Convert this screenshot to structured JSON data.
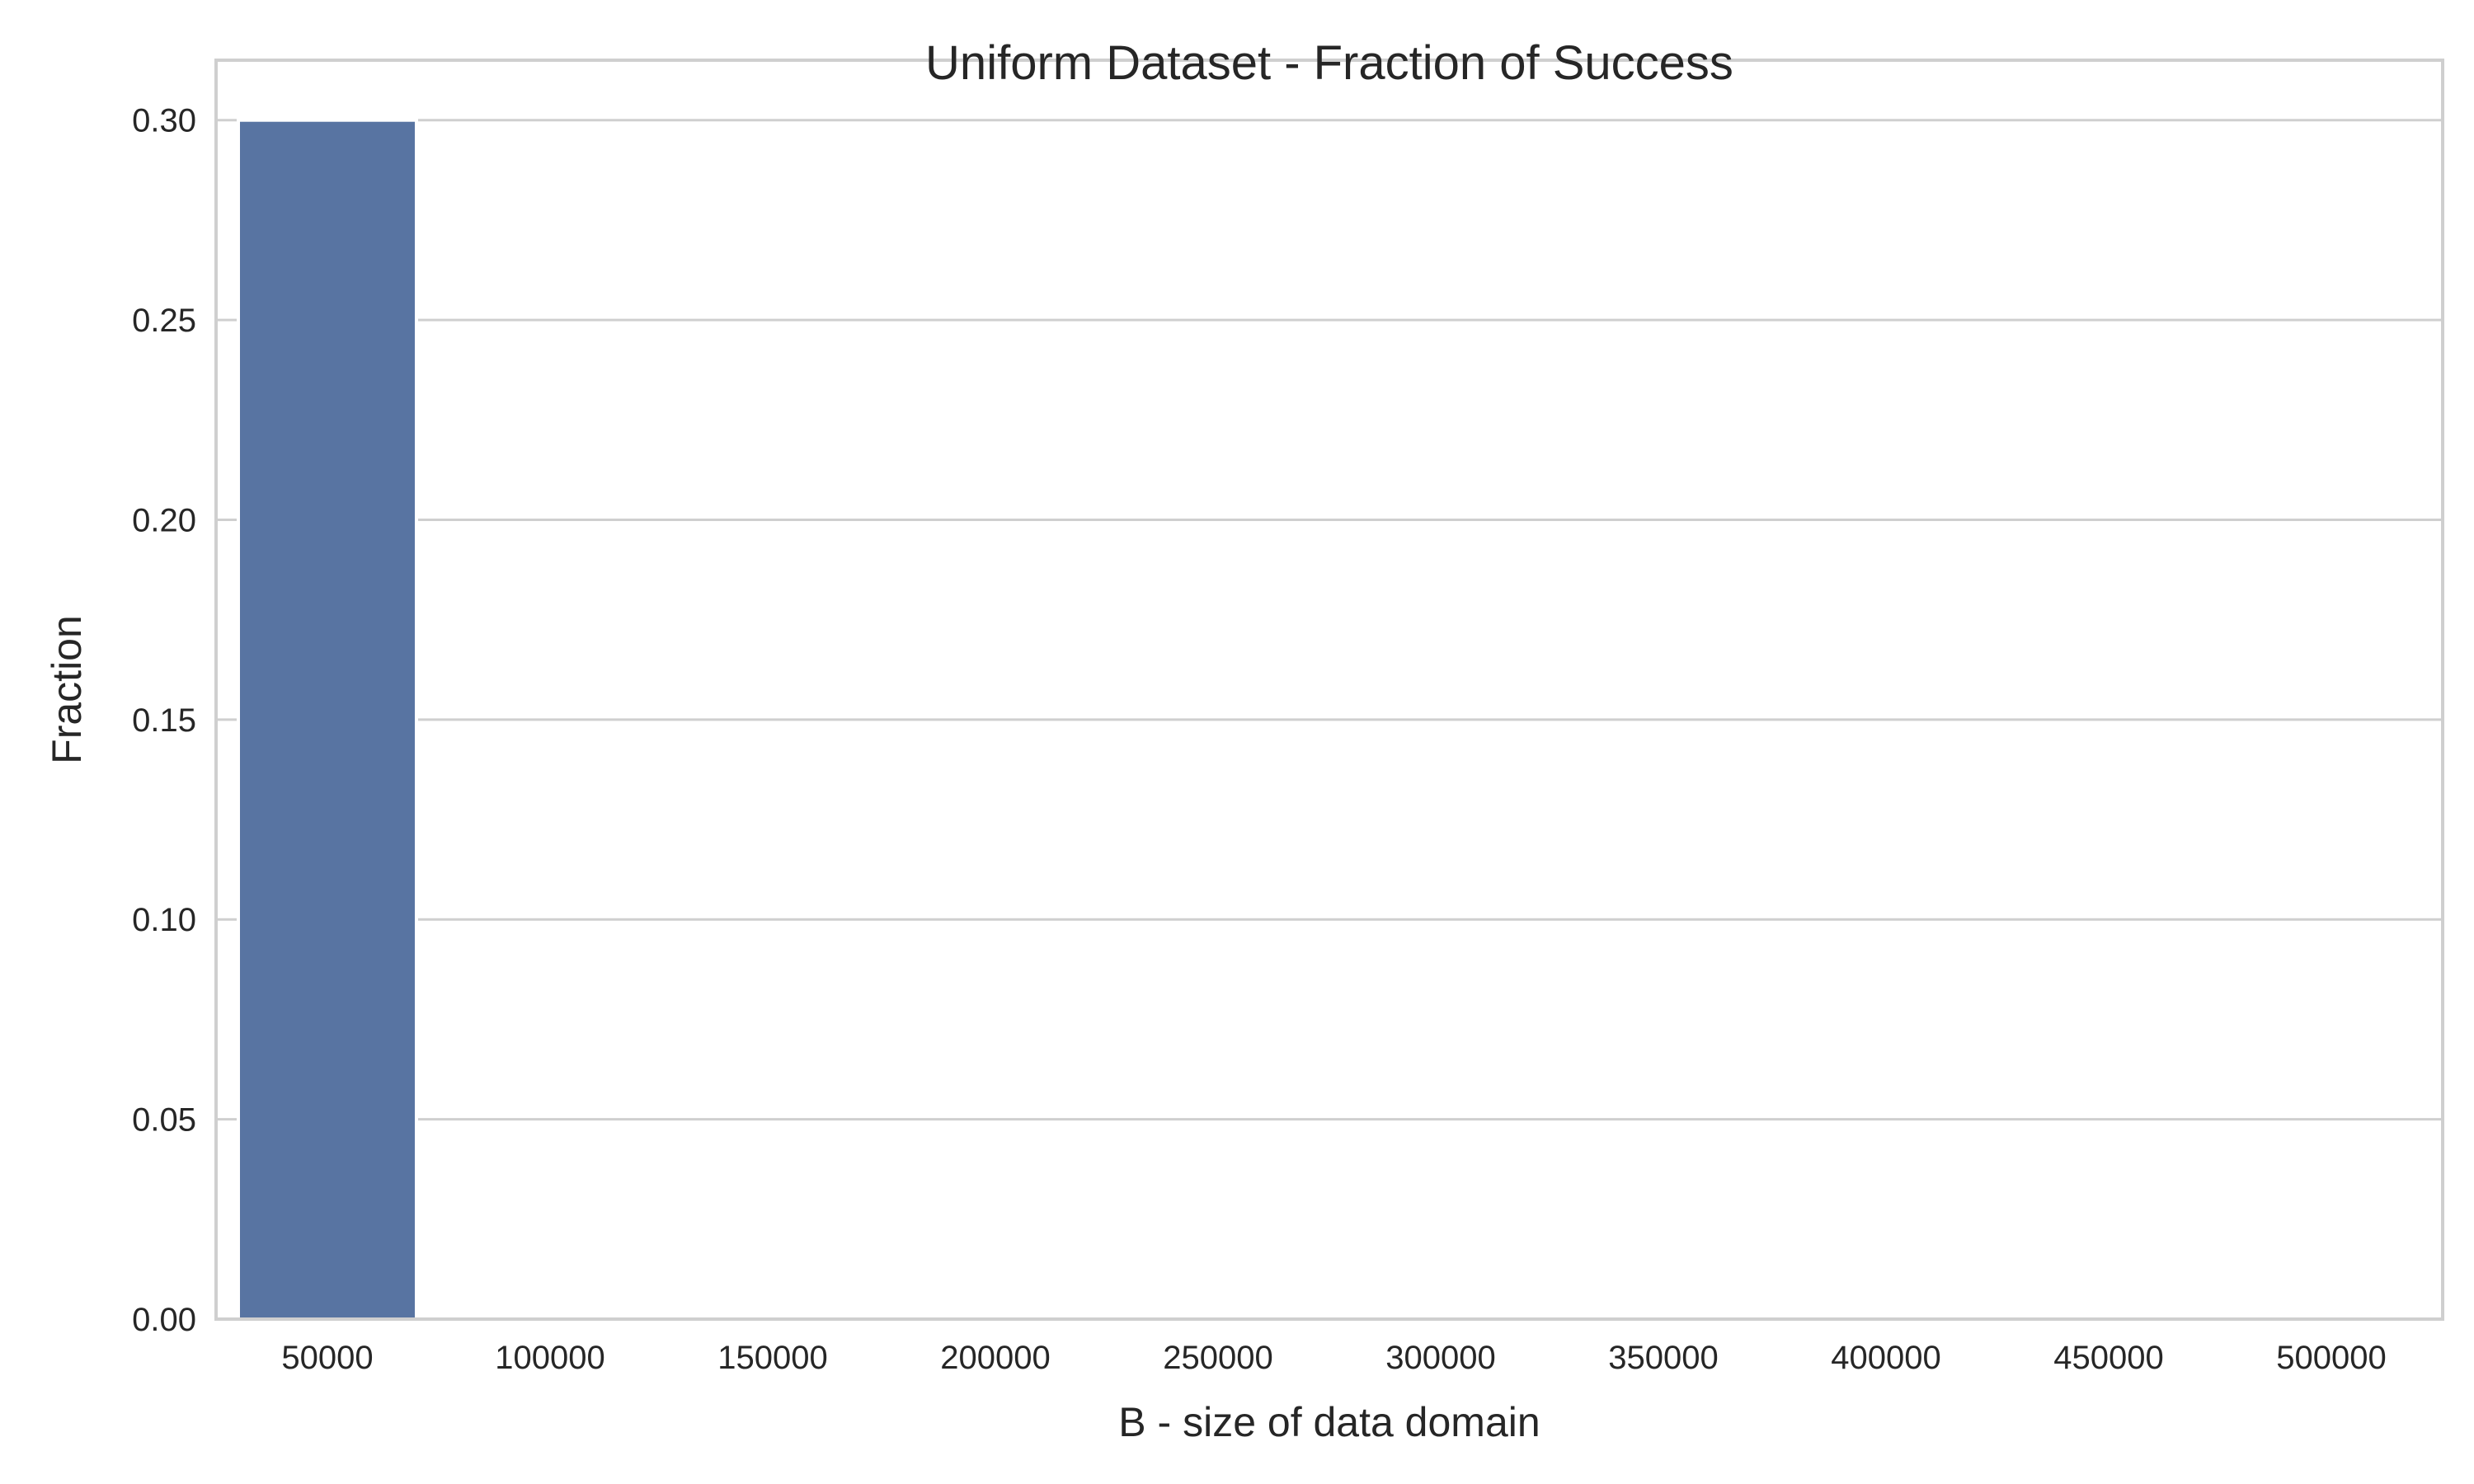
{
  "chart_data": {
    "type": "bar",
    "title": "Uniform Dataset - Fraction of Success",
    "xlabel": "B - size of data domain",
    "ylabel": "Fraction",
    "categories": [
      "50000",
      "100000",
      "150000",
      "200000",
      "250000",
      "300000",
      "350000",
      "400000",
      "450000",
      "500000"
    ],
    "values": [
      0.3,
      0,
      0,
      0,
      0,
      0,
      0,
      0,
      0,
      0
    ],
    "ylim": [
      0,
      0.315
    ],
    "yticks": [
      "0.00",
      "0.05",
      "0.10",
      "0.15",
      "0.20",
      "0.25",
      "0.30"
    ],
    "ytick_values": [
      0,
      0.05,
      0.1,
      0.15,
      0.2,
      0.25,
      0.3
    ],
    "grid": "horizontal",
    "bar_color": "#5874a2",
    "grid_color": "#cfcfcf",
    "text_color": "#262626"
  }
}
